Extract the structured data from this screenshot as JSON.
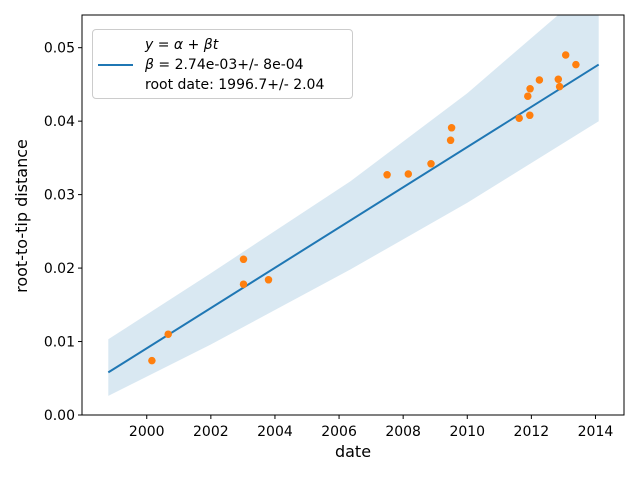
{
  "chart_data": {
    "type": "scatter",
    "title": "",
    "xlabel": "date",
    "ylabel": "root-to-tip distance",
    "xlim": [
      1997.98,
      2014.89
    ],
    "ylim": [
      0,
      0.05445
    ],
    "grid": false,
    "legend_position": "upper left",
    "legend": {
      "row1": "y = α + βt",
      "row2_symbol": "β",
      "row2_text": " = 2.74e-03+/- 8e-04",
      "row3": "root date: 1996.7+/- 2.04"
    },
    "xticks": {
      "values": [
        2000,
        2002,
        2004,
        2006,
        2008,
        2010,
        2012,
        2014
      ],
      "labels": [
        "2000",
        "2002",
        "2004",
        "2006",
        "2008",
        "2010",
        "2012",
        "2014"
      ]
    },
    "yticks": {
      "values": [
        0.0,
        0.01,
        0.02,
        0.03,
        0.04,
        0.05
      ],
      "labels": [
        "0.00",
        "0.01",
        "0.02",
        "0.03",
        "0.04",
        "0.05"
      ]
    },
    "scatter_points": [
      [
        2000.16,
        0.0074
      ],
      [
        2000.67,
        0.011
      ],
      [
        2003.02,
        0.0178
      ],
      [
        2003.02,
        0.0212
      ],
      [
        2003.8,
        0.0184
      ],
      [
        2007.5,
        0.0327
      ],
      [
        2008.16,
        0.0328
      ],
      [
        2008.87,
        0.0342
      ],
      [
        2009.48,
        0.0374
      ],
      [
        2009.51,
        0.0391
      ],
      [
        2011.62,
        0.0404
      ],
      [
        2011.95,
        0.0408
      ],
      [
        2011.89,
        0.0434
      ],
      [
        2011.96,
        0.0444
      ],
      [
        2012.25,
        0.0456
      ],
      [
        2012.84,
        0.0457
      ],
      [
        2012.88,
        0.0447
      ],
      [
        2013.07,
        0.049
      ],
      [
        2013.39,
        0.0477
      ]
    ],
    "regression_line": {
      "x1": 1998.8,
      "y1": 0.0058,
      "x2": 2014.1,
      "y2": 0.0477,
      "slope_per_year": 0.00274,
      "slope_uncertainty": 0.0008,
      "root_date": 1996.7,
      "root_date_uncertainty": 2.04
    },
    "confidence_band": {
      "upper": [
        [
          1998.8,
          0.0103
        ],
        [
          2002.0,
          0.0193
        ],
        [
          2006.35,
          0.0318
        ],
        [
          2010.0,
          0.0438
        ],
        [
          2012.85,
          0.0545
        ],
        [
          2014.1,
          0.0592
        ]
      ],
      "lower": [
        [
          1998.8,
          0.0026
        ],
        [
          2002.0,
          0.0096
        ],
        [
          2006.35,
          0.0198
        ],
        [
          2010.0,
          0.0289
        ],
        [
          2014.1,
          0.04
        ]
      ]
    },
    "colors": {
      "scatter": "#ff7f0e",
      "line": "#1f77b4",
      "band_fill": "#1f77b4",
      "band_opacity": 0.17,
      "spine": "#000000",
      "legend_border": "#cccccc",
      "text": "#000000"
    }
  }
}
